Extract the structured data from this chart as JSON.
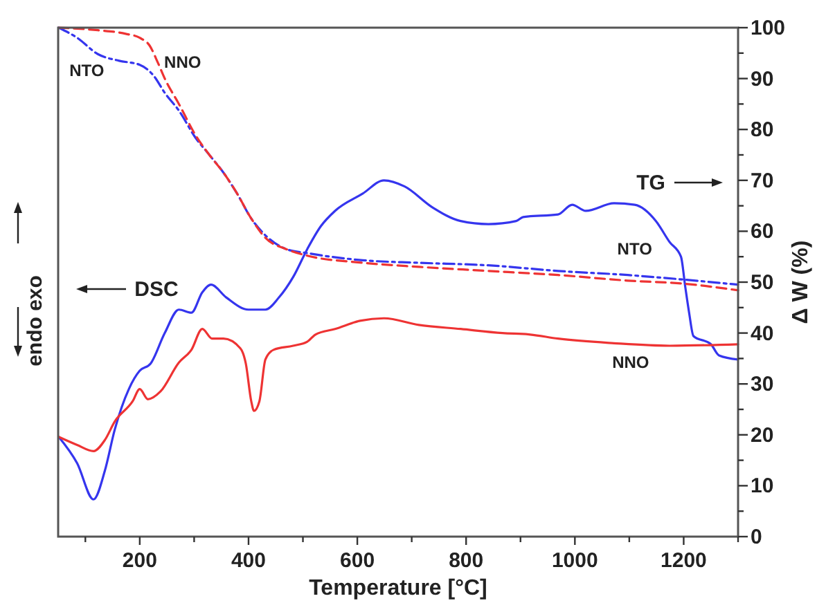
{
  "chart_data": {
    "type": "line",
    "xlabel": "Temperature [°C]",
    "ylabel": "Δ W (%)",
    "xlim": [
      50,
      1300
    ],
    "ylim": [
      0,
      100
    ],
    "xticks": [
      {
        "value": 100,
        "label": null
      },
      200,
      {
        "value": 300,
        "label": null
      },
      400,
      {
        "value": 500,
        "label": null
      },
      600,
      {
        "value": 700,
        "label": null
      },
      800,
      {
        "value": 900,
        "label": null
      },
      1000,
      {
        "value": 1100,
        "label": null
      },
      1200,
      {
        "value": 1300,
        "label": null
      }
    ],
    "yticks": [
      0,
      {
        "value": 5,
        "label": null
      },
      10,
      {
        "value": 15,
        "label": null
      },
      20,
      {
        "value": 25,
        "label": null
      },
      30,
      {
        "value": 35,
        "label": null
      },
      40,
      {
        "value": 45,
        "label": null
      },
      50,
      {
        "value": 55,
        "label": null
      },
      60,
      {
        "value": 65,
        "label": null
      },
      70,
      {
        "value": 75,
        "label": null
      },
      80,
      {
        "value": 85,
        "label": null
      },
      90,
      {
        "value": 95,
        "label": null
      },
      100
    ],
    "grid": false,
    "series": [
      {
        "name": "NTO",
        "color": "#3535ee",
        "line_style": "solid",
        "x": [
          51,
          85,
          115,
          136,
          154,
          180,
          200,
          220,
          246,
          272,
          295,
          315,
          331,
          359,
          400,
          431,
          456,
          482,
          508,
          533,
          559,
          610,
          649,
          687,
          738,
          790,
          841,
          892,
          905,
          969,
          995,
          1020,
          1072,
          1110,
          1149,
          1174,
          1195,
          1203,
          1210,
          1218,
          1250,
          1265,
          1300
        ],
        "values": [
          19.6,
          14.4,
          7.3,
          13,
          21,
          29,
          32.6,
          34,
          40,
          44.6,
          44,
          48,
          49.5,
          47,
          44.6,
          44.6,
          47,
          51,
          56.5,
          61,
          64,
          67.4,
          70,
          68.8,
          64.7,
          62,
          61.4,
          62,
          62.8,
          63.3,
          65.2,
          64,
          65.5,
          65.2,
          62,
          57.9,
          55,
          49,
          44,
          39.4,
          37.8,
          35.6,
          34.8
        ]
      },
      {
        "name": "NNO",
        "color": "#ee3333",
        "line_style": "solid",
        "x": [
          51,
          85,
          115,
          136,
          154,
          187,
          200,
          215,
          238,
          272,
          295,
          315,
          333,
          354,
          385,
          395,
          405,
          410,
          420,
          431,
          446,
          482,
          508,
          523,
          559,
          605,
          649,
          713,
          790,
          867,
          918,
          969,
          1072,
          1174,
          1300
        ],
        "values": [
          19.6,
          18,
          16.8,
          19,
          22.6,
          26.6,
          29,
          27,
          28.5,
          34.2,
          36.7,
          40.8,
          38.9,
          38.9,
          37,
          34,
          26.6,
          24.7,
          26.6,
          34.8,
          36.7,
          37.5,
          38.3,
          39.7,
          40.8,
          42.4,
          42.9,
          41.6,
          40.8,
          40,
          39.7,
          38.9,
          38,
          37.5,
          37.8
        ]
      },
      {
        "name": "NTO",
        "color": "#3535ee",
        "line_style": "dashdot",
        "x": [
          51,
          85,
          123,
          162,
          200,
          226,
          246,
          272,
          303,
          328,
          354,
          379,
          405,
          431,
          469,
          508,
          610,
          713,
          841,
          969,
          1097,
          1200,
          1300
        ],
        "values": [
          100,
          98,
          94.8,
          93.5,
          92.7,
          90.5,
          87.2,
          83.7,
          78.3,
          75,
          71.5,
          67.4,
          62.5,
          59.2,
          56.5,
          55.7,
          54.3,
          53.8,
          53.3,
          52.2,
          51.4,
          50.5,
          49.5
        ]
      },
      {
        "name": "NNO",
        "color": "#ee3333",
        "line_style": "dashed",
        "x": [
          51,
          123,
          174,
          200,
          218,
          233,
          246,
          272,
          303,
          328,
          354,
          379,
          405,
          431,
          469,
          508,
          610,
          713,
          841,
          969,
          1097,
          1200,
          1300
        ],
        "values": [
          100,
          99.5,
          98.8,
          98,
          96.5,
          93.2,
          90,
          85,
          78.8,
          75,
          71.5,
          67.4,
          62.5,
          58.7,
          56.5,
          55.2,
          53.8,
          53,
          52.2,
          51.4,
          50.3,
          49.7,
          48.4
        ]
      }
    ],
    "annotations": [
      "TG",
      "DSC",
      "endo exo"
    ]
  }
}
